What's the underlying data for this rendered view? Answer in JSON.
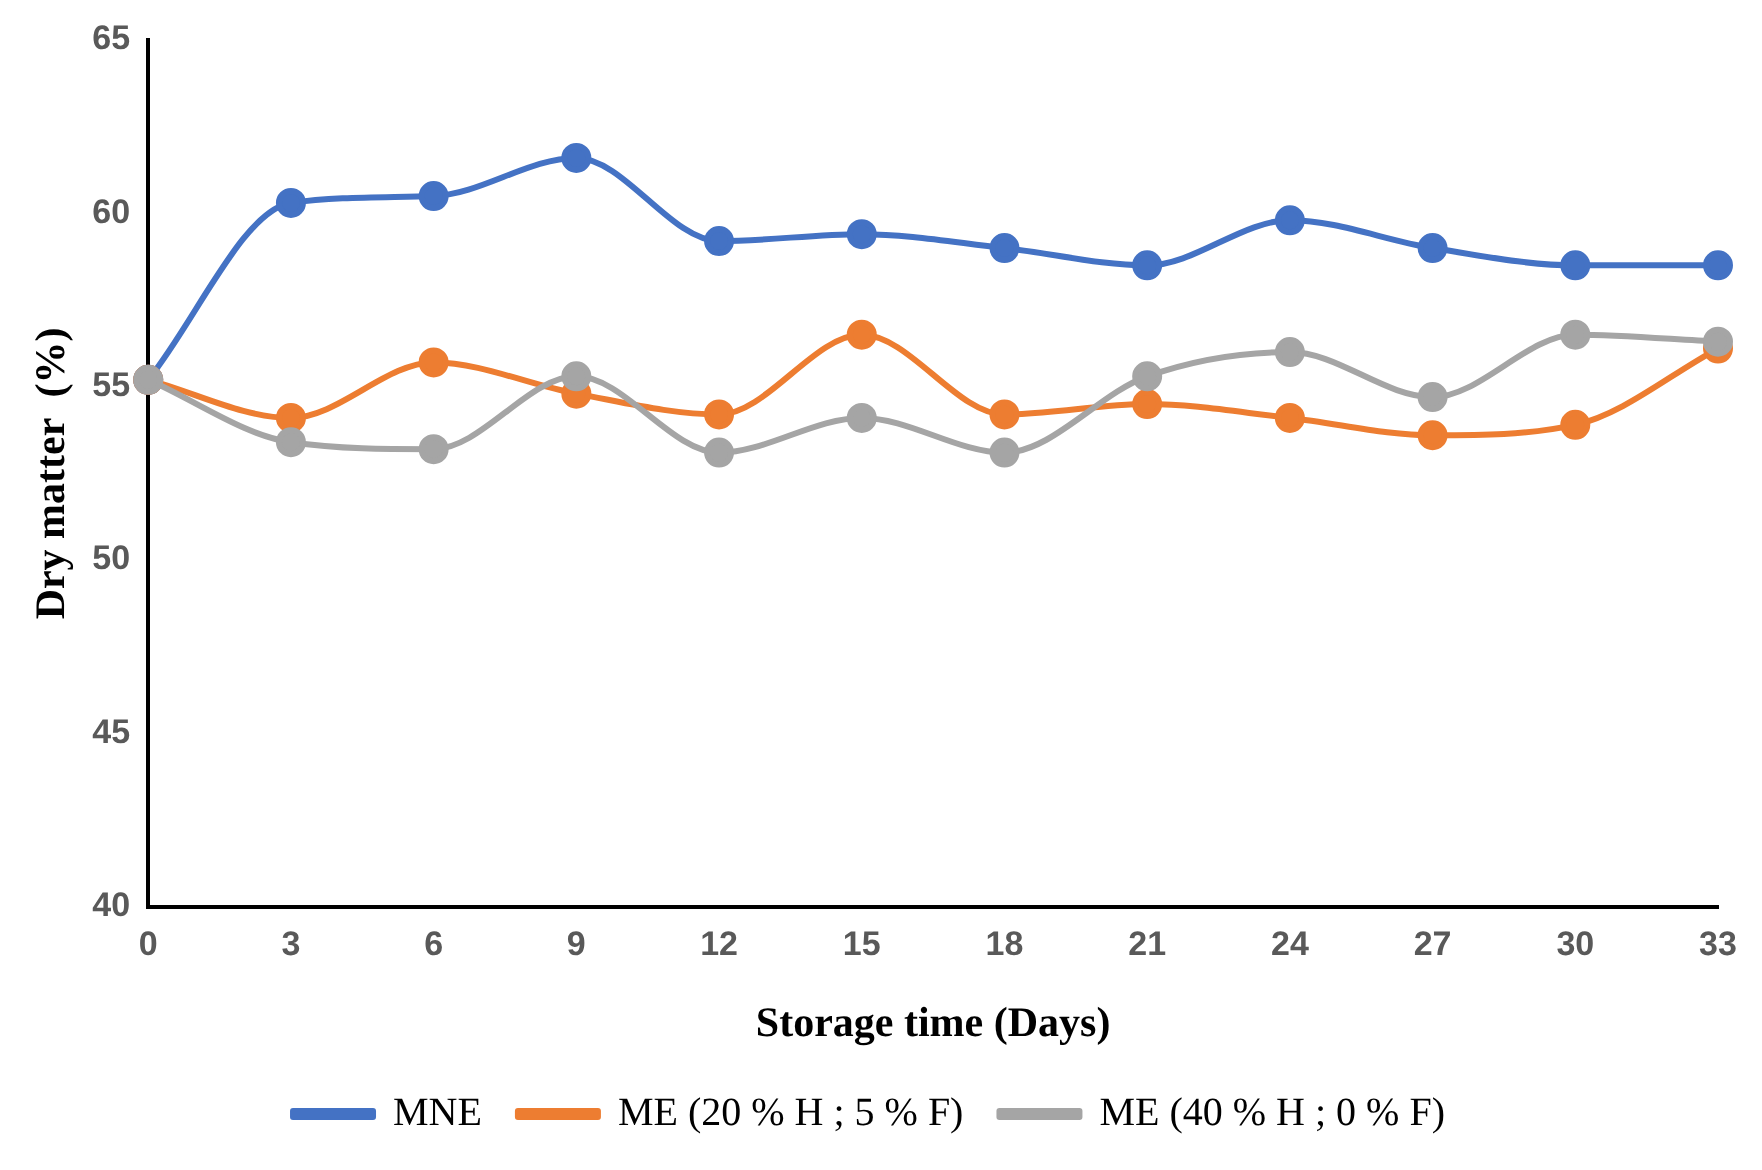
{
  "chart_data": {
    "type": "line",
    "xlabel": "Storage time (Days)",
    "ylabel": "Dry matter  (%)",
    "x": [
      0,
      3,
      6,
      9,
      12,
      15,
      18,
      21,
      24,
      27,
      30,
      33
    ],
    "xlim": [
      0,
      33
    ],
    "xticks": [
      0,
      3,
      6,
      9,
      12,
      15,
      18,
      21,
      24,
      27,
      30,
      33
    ],
    "ylim": [
      40,
      65
    ],
    "yticks": [
      40,
      45,
      50,
      55,
      60,
      65
    ],
    "series": [
      {
        "name": "MNE",
        "color": "#4472c4",
        "values": [
          55.2,
          60.3,
          60.5,
          61.6,
          59.2,
          59.4,
          59.0,
          58.5,
          59.8,
          59.0,
          58.5,
          58.5
        ]
      },
      {
        "name": "ME (20 % H ; 5 % F)",
        "color": "#ed7d31",
        "values": [
          55.2,
          54.1,
          55.7,
          54.8,
          54.2,
          56.5,
          54.2,
          54.5,
          54.1,
          53.6,
          53.9,
          56.1
        ]
      },
      {
        "name": "ME (40 % H ; 0 % F)",
        "color": "#a5a5a5",
        "values": [
          55.2,
          53.4,
          53.2,
          55.3,
          53.1,
          54.1,
          53.1,
          55.3,
          56.0,
          54.7,
          56.5,
          56.3
        ]
      }
    ],
    "grid": false,
    "legend": "bottom",
    "marker": "circle",
    "line_style": "solid"
  }
}
